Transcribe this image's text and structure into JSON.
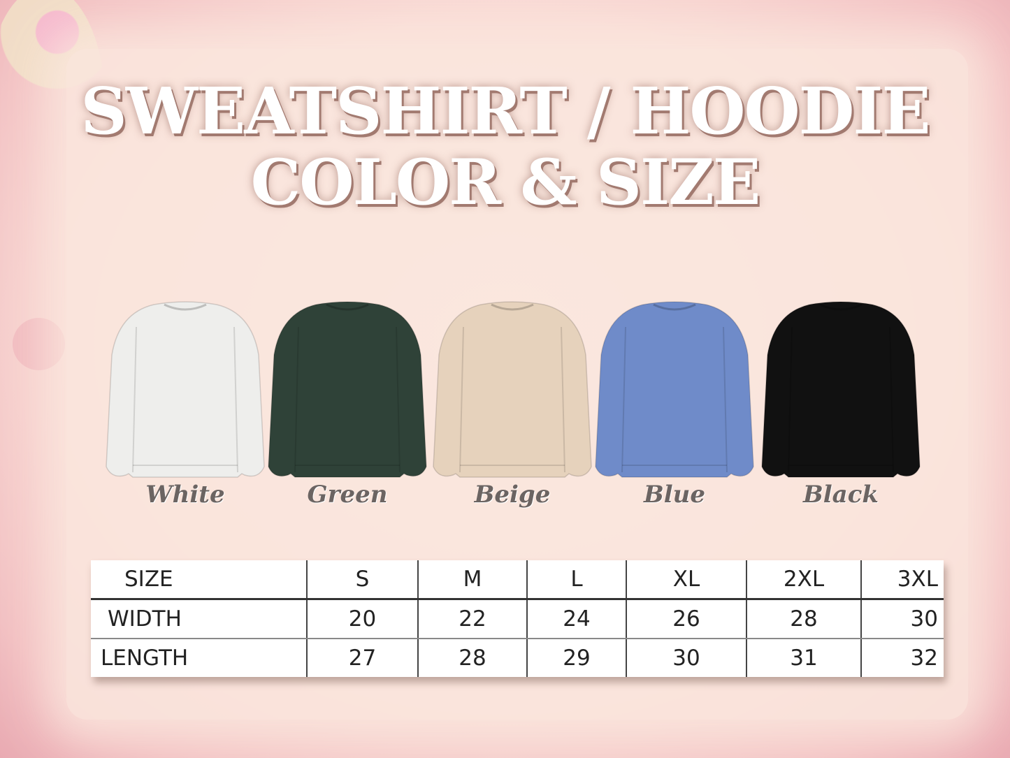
{
  "title": {
    "line1": "SWEATSHIRT / HOODIE",
    "line2": "COLOR & SIZE"
  },
  "colors": [
    {
      "label": "White",
      "hex": "#eeeeec"
    },
    {
      "label": "Green",
      "hex": "#2f4238"
    },
    {
      "label": "Beige",
      "hex": "#e6d2bc"
    },
    {
      "label": "Blue",
      "hex": "#6f8bc9"
    },
    {
      "label": "Black",
      "hex": "#111111"
    }
  ],
  "size_table": {
    "header": [
      "SIZE",
      "S",
      "M",
      "L",
      "XL",
      "2XL",
      "3XL"
    ],
    "rows": [
      [
        "WIDTH",
        "20",
        "22",
        "24",
        "26",
        "28",
        "30"
      ],
      [
        "LENGTH",
        "27",
        "28",
        "29",
        "30",
        "31",
        "32"
      ]
    ]
  }
}
